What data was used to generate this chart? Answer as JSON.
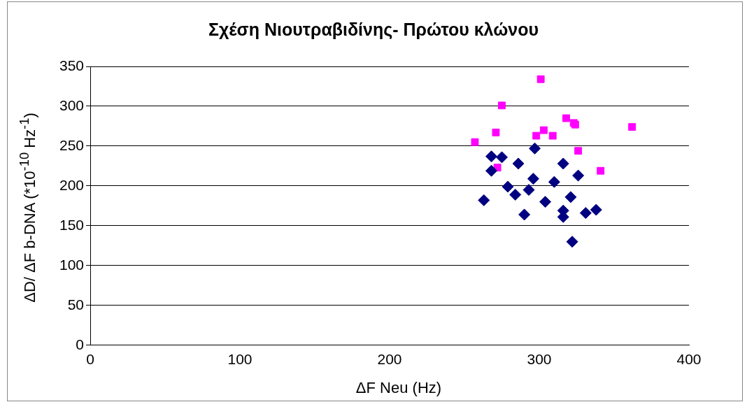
{
  "chart_data": {
    "type": "scatter",
    "title": "Σχέση Νιουτραβιδίνης- Πρώτου κλώνου",
    "xlabel": "ΔF Neu (Hz)",
    "ylabel": "ΔD/ ΔF  b-DNA  (*10$^{-10}$ Hz$^{-1}$)",
    "xlim": [
      0,
      400
    ],
    "xticks": [
      0,
      100,
      200,
      300,
      400
    ],
    "ylim": [
      0,
      350
    ],
    "yticks": [
      0,
      50,
      100,
      150,
      200,
      250,
      300,
      350
    ],
    "grid": "y",
    "legend": false,
    "series": [
      {
        "color": "#000080",
        "marker": "diamond",
        "x": [
          297,
          268,
          275,
          286,
          316,
          268,
          296,
          310,
          326,
          279,
          293,
          284,
          263,
          304,
          321,
          316,
          316,
          290,
          331,
          338,
          322
        ],
        "values": [
          247,
          237,
          236,
          228,
          228,
          219,
          209,
          205,
          213,
          199,
          195,
          189,
          182,
          180,
          186,
          169,
          161,
          164,
          166,
          170,
          130
        ]
      },
      {
        "color": "#ff00ff",
        "marker": "square",
        "x": [
          257,
          275,
          271,
          272,
          301,
          298,
          303,
          309,
          318,
          323,
          324,
          326,
          341,
          362
        ],
        "values": [
          255,
          301,
          267,
          223,
          334,
          263,
          270,
          263,
          285,
          279,
          277,
          244,
          219,
          274
        ]
      }
    ]
  }
}
